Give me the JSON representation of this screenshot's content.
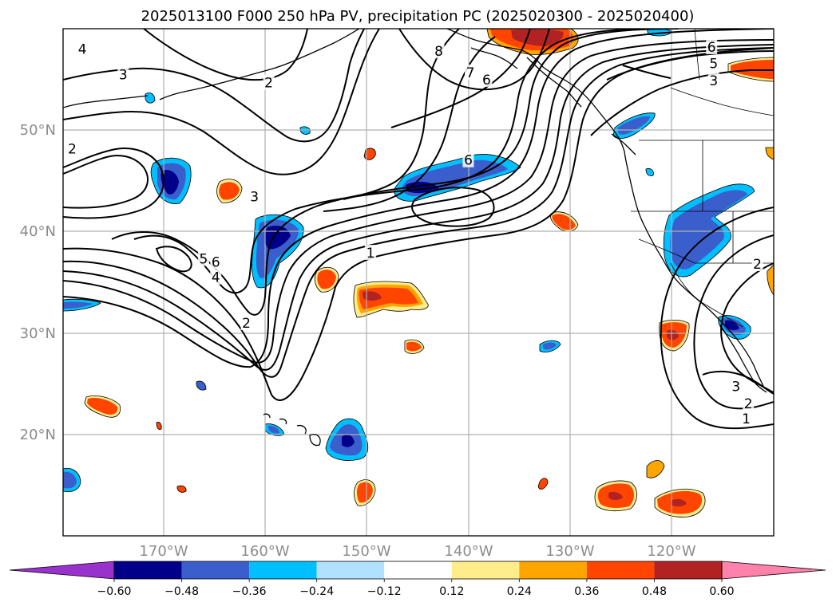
{
  "title": "2025013100 F000 250 hPa PV, precipitation PC (2025020300 - 2025020400)",
  "map": {
    "lat_labels": [
      "50°N",
      "40°N",
      "30°N",
      "20°N"
    ],
    "lon_labels": [
      "170°W",
      "160°W",
      "150°W",
      "140°W",
      "130°W",
      "120°W"
    ],
    "lat_values": [
      50,
      40,
      30,
      20
    ],
    "lon_values": [
      -170,
      -160,
      -150,
      -140,
      -130,
      -120
    ],
    "extent": {
      "lon_min": -179.8,
      "lon_max": -110.0,
      "lat_min": 10.0,
      "lat_max": 59.8
    }
  },
  "pv_contour_labels": [
    {
      "text": "4",
      "lon": -177.9,
      "lat": 57.8
    },
    {
      "text": "3",
      "lon": -173.9,
      "lat": 55.3
    },
    {
      "text": "2",
      "lon": -159.6,
      "lat": 54.5
    },
    {
      "text": "2",
      "lon": -178.9,
      "lat": 48.0
    },
    {
      "text": "8",
      "lon": -142.9,
      "lat": 57.6
    },
    {
      "text": "6",
      "lon": -116.1,
      "lat": 58.0
    },
    {
      "text": "5",
      "lon": -115.9,
      "lat": 56.4
    },
    {
      "text": "3",
      "lon": -115.9,
      "lat": 54.7
    },
    {
      "text": "7",
      "lon": -139.8,
      "lat": 55.5
    },
    {
      "text": "6",
      "lon": -138.2,
      "lat": 54.8
    },
    {
      "text": "6",
      "lon": -140.0,
      "lat": 46.9
    },
    {
      "text": "3",
      "lon": -161.0,
      "lat": 43.3
    },
    {
      "text": "1",
      "lon": -149.6,
      "lat": 37.8
    },
    {
      "text": "5",
      "lon": -166.0,
      "lat": 37.2
    },
    {
      "text": "6",
      "lon": -164.8,
      "lat": 36.9
    },
    {
      "text": "4",
      "lon": -164.8,
      "lat": 35.4
    },
    {
      "text": "2",
      "lon": -161.8,
      "lat": 30.9
    },
    {
      "text": "2",
      "lon": -111.6,
      "lat": 36.7
    },
    {
      "text": "3",
      "lon": -113.7,
      "lat": 24.7
    },
    {
      "text": "2",
      "lon": -112.5,
      "lat": 23.0
    },
    {
      "text": "1",
      "lon": -112.7,
      "lat": 21.5
    }
  ],
  "colorbar": {
    "ticks": [
      "−0.60",
      "−0.48",
      "−0.36",
      "−0.24",
      "−0.12",
      "0.12",
      "0.24",
      "0.36",
      "0.48",
      "0.60"
    ],
    "colors": [
      "#9932CC",
      "#00008B",
      "#3A5FCD",
      "#00BFFF",
      "#B0E2FF",
      "#FFFFFF",
      "#FFEC8B",
      "#FFA500",
      "#FF4500",
      "#B22222",
      "#FF82AB"
    ]
  },
  "colors": {
    "contour": "#000000",
    "gridline": "#b0b0b0",
    "axis_label": "#8c8c8c"
  }
}
